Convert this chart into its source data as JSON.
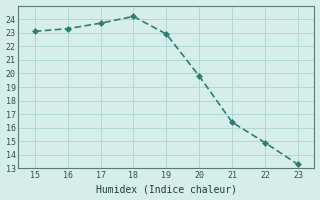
{
  "x": [
    15,
    16,
    17,
    18,
    19,
    20,
    21,
    22,
    23
  ],
  "y": [
    23.1,
    23.3,
    23.7,
    24.2,
    22.9,
    19.8,
    16.4,
    14.9,
    13.3
  ],
  "xlabel": "Humidex (Indice chaleur)",
  "ylim": [
    13,
    25
  ],
  "xlim": [
    14.5,
    23.5
  ],
  "yticks": [
    13,
    14,
    15,
    16,
    17,
    18,
    19,
    20,
    21,
    22,
    23,
    24
  ],
  "xticks": [
    15,
    16,
    17,
    18,
    19,
    20,
    21,
    22,
    23
  ],
  "line_color": "#2e7d6e",
  "marker_color": "#2e7d6e",
  "bg_color": "#d6eeea",
  "grid_color": "#b0d8d2",
  "axis_color": "#5a7a74",
  "tick_label_color": "#2e5050",
  "xlabel_color": "#1a3a3a",
  "font_family": "monospace"
}
